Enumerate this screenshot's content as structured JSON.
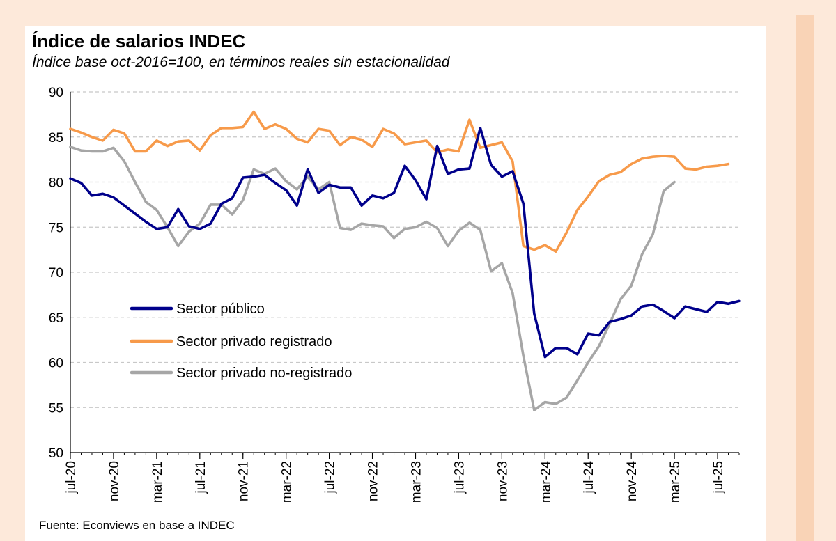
{
  "source": "Fuente: Econviews en base a INDEC",
  "chart_data": {
    "type": "line",
    "title": "Índice de salarios INDEC",
    "subtitle": "Índice base oct-2016=100, en términos reales sin estacionalidad",
    "xlabel": "",
    "ylabel": "",
    "ylim": [
      50,
      90
    ],
    "yticks": [
      "50",
      "55",
      "60",
      "65",
      "70",
      "75",
      "80",
      "85",
      "90"
    ],
    "grid": true,
    "legend_position": "middle-left",
    "x_start": "jul-20",
    "x_ticks": [
      {
        "label": "jul-20",
        "index": 0
      },
      {
        "label": "nov-20",
        "index": 4
      },
      {
        "label": "mar-21",
        "index": 8
      },
      {
        "label": "jul-21",
        "index": 12
      },
      {
        "label": "nov-21",
        "index": 16
      },
      {
        "label": "mar-22",
        "index": 20
      },
      {
        "label": "jul-22",
        "index": 24
      },
      {
        "label": "nov-22",
        "index": 28
      },
      {
        "label": "mar-23",
        "index": 32
      },
      {
        "label": "jul-23",
        "index": 36
      },
      {
        "label": "nov-23",
        "index": 40
      },
      {
        "label": "mar-24",
        "index": 44
      },
      {
        "label": "jul-24",
        "index": 48
      },
      {
        "label": "nov-24",
        "index": 52
      },
      {
        "label": "mar-25",
        "index": 56
      },
      {
        "label": "jul-25",
        "index": 60
      }
    ],
    "series": [
      {
        "name": "Sector público",
        "color": "#00008b",
        "values": [
          80.4,
          79.9,
          78.5,
          78.7,
          78.3,
          77.4,
          76.5,
          75.6,
          74.8,
          75.0,
          77.0,
          75.1,
          74.8,
          75.4,
          77.6,
          78.2,
          80.5,
          80.6,
          80.8,
          79.9,
          79.1,
          77.4,
          81.4,
          78.8,
          79.7,
          79.4,
          79.4,
          77.4,
          78.5,
          78.2,
          78.8,
          81.8,
          80.2,
          78.1,
          84.0,
          80.9,
          81.4,
          81.5,
          86.0,
          81.9,
          80.6,
          81.2,
          77.6,
          65.4,
          60.6,
          61.6,
          61.6,
          60.9,
          63.2,
          63.0,
          64.5,
          64.8,
          65.2,
          66.2,
          66.4,
          65.7,
          64.9,
          66.2,
          65.9,
          65.6,
          66.7,
          66.5,
          66.8
        ]
      },
      {
        "name": "Sector privado registrado",
        "color": "#f79a4a",
        "values": [
          85.9,
          85.5,
          85.0,
          84.6,
          85.8,
          85.4,
          83.4,
          83.4,
          84.6,
          84.0,
          84.5,
          84.6,
          83.5,
          85.2,
          86.0,
          86.0,
          86.1,
          87.8,
          85.9,
          86.4,
          85.9,
          84.8,
          84.4,
          85.9,
          85.7,
          84.1,
          85.0,
          84.7,
          83.9,
          85.9,
          85.4,
          84.2,
          84.4,
          84.6,
          83.3,
          83.6,
          83.4,
          86.9,
          83.8,
          84.1,
          84.4,
          82.3,
          72.9,
          72.5,
          73.0,
          72.3,
          74.4,
          76.9,
          78.4,
          80.1,
          80.8,
          81.1,
          82.0,
          82.6,
          82.8,
          82.9,
          82.8,
          81.5,
          81.4,
          81.7,
          81.8,
          82.0
        ]
      },
      {
        "name": "Sector privado no-registrado",
        "color": "#a6a6a6",
        "values": [
          83.9,
          83.5,
          83.4,
          83.4,
          83.8,
          82.3,
          80.0,
          77.8,
          76.9,
          75.0,
          72.9,
          74.5,
          75.4,
          77.5,
          77.5,
          76.4,
          78.0,
          81.4,
          80.9,
          81.5,
          80.1,
          79.2,
          80.6,
          79.2,
          80.0,
          74.9,
          74.7,
          75.4,
          75.2,
          75.1,
          73.8,
          74.8,
          75.0,
          75.6,
          74.9,
          72.9,
          74.6,
          75.5,
          74.7,
          70.1,
          71.0,
          67.7,
          60.7,
          54.7,
          55.6,
          55.4,
          56.1,
          58.0,
          60.0,
          61.8,
          64.3,
          67.0,
          68.5,
          72.0,
          74.2,
          79.0,
          80.0
        ]
      }
    ]
  }
}
